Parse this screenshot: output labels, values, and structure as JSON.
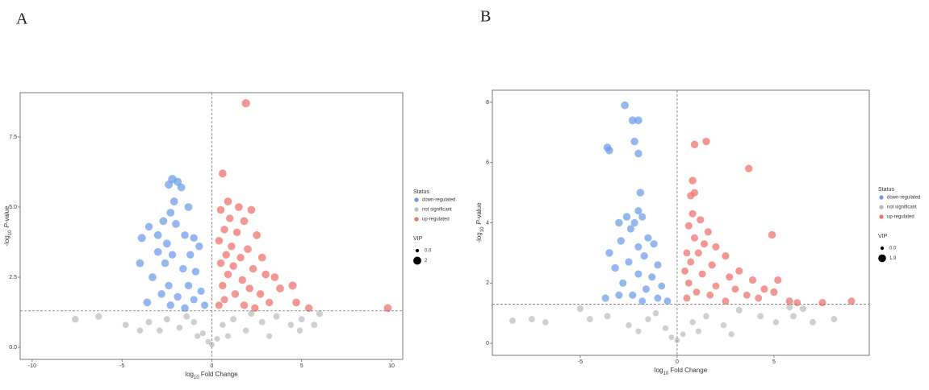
{
  "chart_data": [
    {
      "type": "scatter",
      "label": "A",
      "x_label": [
        "log",
        "10",
        " Fold Change"
      ],
      "y_label": [
        "-log",
        "10",
        "P",
        "-value"
      ],
      "xlim": [
        -10.67,
        10.63
      ],
      "ylim": [
        -0.43,
        9.08
      ],
      "xticks": [
        -10,
        -5,
        0,
        5,
        10
      ],
      "yticks": [
        {
          "value": 0,
          "label": "0.0"
        },
        2.5,
        {
          "value": 5,
          "label": "5.0"
        },
        7.5
      ],
      "thresholds": {
        "x": 0,
        "y": 1.3
      },
      "legend_title": "Status",
      "series": [
        {
          "name": "down-regulated",
          "color": "#6a9be8",
          "x": [
            -2.2,
            -1.9,
            -1.7,
            -2.4,
            -2.1,
            -2.3,
            -1.3,
            -2.7,
            -2.0,
            -3.5,
            -3.9,
            -3.0,
            -1.5,
            -2.5,
            -1.0,
            -0.7,
            -3.0,
            -2.2,
            -1.2,
            -4.0,
            -2.6,
            -1.6,
            -0.9,
            -3.3,
            -2.4,
            -1.3,
            -0.6,
            -2.8,
            -1.9,
            -1.0,
            -3.6,
            -2.3,
            -0.4,
            -1.5
          ],
          "values": [
            6.0,
            5.9,
            5.7,
            5.8,
            5.2,
            4.8,
            5.0,
            4.5,
            4.4,
            4.3,
            3.9,
            4.0,
            4.0,
            3.7,
            3.9,
            3.6,
            3.4,
            3.3,
            3.3,
            3.0,
            3.0,
            2.8,
            2.7,
            2.5,
            2.2,
            2.2,
            2.0,
            1.9,
            1.8,
            1.7,
            1.6,
            1.5,
            1.5,
            1.4
          ],
          "sizes": [
            1.8,
            1.7,
            1.6,
            1.7,
            1.6,
            1.6,
            1.6,
            1.6,
            1.6,
            1.5,
            1.7,
            1.6,
            1.5,
            1.6,
            1.5,
            1.5,
            1.6,
            1.5,
            1.5,
            1.6,
            1.5,
            1.5,
            1.5,
            1.6,
            1.5,
            1.5,
            1.4,
            1.5,
            1.5,
            1.4,
            1.6,
            1.5,
            1.4,
            1.5
          ]
        },
        {
          "name": "not significant",
          "color": "#bdbdbd",
          "x": [
            -7.6,
            -6.3,
            -4.8,
            -3.5,
            -2.5,
            -1.8,
            -1.0,
            -0.5,
            0,
            0.3,
            0.6,
            1.2,
            1.9,
            2.8,
            3.6,
            4.4,
            5.0,
            5.7,
            6.0,
            -0.2,
            -0.8,
            0.9,
            -1.4,
            2.2,
            -2.9,
            3.2,
            -4.0,
            4.9
          ],
          "values": [
            1.0,
            1.1,
            0.8,
            0.9,
            1.0,
            0.7,
            0.9,
            0.5,
            0.1,
            0.3,
            0.8,
            1.0,
            0.6,
            0.9,
            1.1,
            0.8,
            1.0,
            0.8,
            1.2,
            0.2,
            0.4,
            0.4,
            1.1,
            1.2,
            0.6,
            0.4,
            0.6,
            0.6
          ],
          "sizes": [
            1.2,
            1.1,
            1.0,
            1.0,
            1.0,
            0.9,
            0.9,
            0.8,
            0.7,
            0.7,
            0.9,
            1.0,
            0.9,
            1.0,
            1.0,
            0.9,
            1.0,
            1.0,
            1.1,
            0.7,
            0.8,
            0.8,
            1.0,
            1.0,
            0.9,
            0.8,
            0.9,
            0.9
          ]
        },
        {
          "name": "up-regulated",
          "color": "#ef6f6a",
          "x": [
            1.9,
            0.6,
            0.9,
            1.5,
            0.5,
            2.2,
            1.0,
            1.8,
            0.7,
            1.4,
            2.5,
            0.4,
            1.1,
            2.0,
            0.8,
            1.6,
            2.8,
            0.5,
            1.2,
            2.3,
            0.9,
            3.0,
            1.7,
            3.5,
            4.5,
            0.6,
            2.1,
            3.8,
            1.3,
            2.7,
            0.7,
            4.7,
            3.2,
            1.8,
            5.4,
            9.8,
            2.4,
            0.4
          ],
          "values": [
            8.7,
            6.2,
            5.2,
            5.0,
            4.9,
            4.9,
            4.6,
            4.5,
            4.2,
            4.1,
            4.0,
            3.8,
            3.6,
            3.5,
            3.3,
            3.2,
            3.2,
            3.0,
            2.9,
            2.8,
            2.6,
            2.6,
            2.4,
            2.5,
            2.2,
            2.2,
            2.1,
            2.1,
            1.9,
            1.9,
            1.7,
            1.6,
            1.6,
            1.5,
            1.4,
            1.4,
            1.4,
            1.5
          ],
          "sizes": [
            1.8,
            1.6,
            1.6,
            1.6,
            1.5,
            1.6,
            1.5,
            1.6,
            1.5,
            1.5,
            1.6,
            1.5,
            1.5,
            1.6,
            1.5,
            1.5,
            1.6,
            1.5,
            1.5,
            1.5,
            1.5,
            1.6,
            1.5,
            1.6,
            1.7,
            1.5,
            1.5,
            1.6,
            1.5,
            1.5,
            1.4,
            1.6,
            1.5,
            1.5,
            1.5,
            1.6,
            1.5,
            1.4
          ]
        }
      ],
      "size_legend": {
        "title": "VIP",
        "values": [
          {
            "value": 0,
            "label": "0.0"
          },
          2
        ]
      }
    },
    {
      "type": "scatter",
      "label": "B",
      "x_label": [
        "log",
        "10",
        " Fold Change"
      ],
      "y_label": [
        "-log",
        "10",
        "P",
        "-value"
      ],
      "xlim": [
        -9.54,
        9.92
      ],
      "ylim": [
        -0.4,
        8.4
      ],
      "xticks": [
        -5,
        0,
        5
      ],
      "yticks": [
        0,
        2,
        4,
        6,
        8
      ],
      "thresholds": {
        "x": 0,
        "y": 1.3
      },
      "legend_title": "Status",
      "series": [
        {
          "name": "down-regulated",
          "color": "#6a9be8",
          "x": [
            -2.7,
            -2.3,
            -2.0,
            -2.2,
            -3.6,
            -3.5,
            -2.0,
            -1.9,
            -2.0,
            -2.6,
            -1.8,
            -2.2,
            -3.0,
            -2.4,
            -1.5,
            -2.9,
            -1.2,
            -2.0,
            -3.5,
            -1.7,
            -2.5,
            -1.0,
            -3.2,
            -2.0,
            -1.3,
            -2.8,
            -0.8,
            -1.6,
            -3.0,
            -2.3,
            -1.0,
            -3.7,
            -0.5,
            -1.8
          ],
          "values": [
            7.9,
            7.4,
            7.4,
            6.7,
            6.5,
            6.4,
            6.3,
            5.0,
            4.4,
            4.2,
            4.2,
            4.0,
            4.0,
            3.8,
            3.5,
            3.4,
            3.3,
            3.2,
            3.0,
            2.9,
            2.7,
            2.6,
            2.5,
            2.3,
            2.2,
            2.0,
            1.9,
            1.8,
            1.6,
            1.6,
            1.5,
            1.5,
            1.4,
            1.4
          ],
          "sizes": [
            1.6,
            1.6,
            1.6,
            1.5,
            1.6,
            1.5,
            1.5,
            1.5,
            1.4,
            1.5,
            1.4,
            1.4,
            1.5,
            1.4,
            1.4,
            1.5,
            1.4,
            1.4,
            1.5,
            1.4,
            1.4,
            1.4,
            1.5,
            1.4,
            1.4,
            1.4,
            1.3,
            1.4,
            1.4,
            1.4,
            1.3,
            1.4,
            1.3,
            1.3
          ]
        },
        {
          "name": "not significant",
          "color": "#bdbdbd",
          "x": [
            -8.5,
            -7.5,
            -6.8,
            -5.0,
            -4.5,
            -3.6,
            -2.5,
            -1.5,
            -0.6,
            0,
            0.3,
            0.8,
            1.5,
            2.4,
            3.2,
            4.3,
            5.1,
            5.8,
            6.5,
            7.0,
            8.1,
            -0.3,
            1.1,
            -1.1,
            2.8,
            -2.0,
            6.0
          ],
          "values": [
            0.75,
            0.8,
            0.7,
            1.15,
            0.8,
            0.9,
            0.6,
            0.8,
            0.5,
            0.1,
            0.3,
            0.7,
            0.9,
            0.6,
            1.1,
            0.9,
            0.7,
            1.2,
            1.15,
            0.7,
            0.8,
            0.2,
            0.4,
            1.0,
            0.3,
            0.4,
            0.9
          ],
          "sizes": [
            1.0,
            1.0,
            0.9,
            1.1,
            1.0,
            1.0,
            0.9,
            0.9,
            0.8,
            0.7,
            0.7,
            0.9,
            0.9,
            0.9,
            1.0,
            1.0,
            0.9,
            1.1,
            1.1,
            1.0,
            1.0,
            0.7,
            0.8,
            0.9,
            0.8,
            0.8,
            1.0
          ]
        },
        {
          "name": "up-regulated",
          "color": "#ef6f6a",
          "x": [
            1.5,
            0.9,
            3.7,
            0.8,
            0.9,
            0.7,
            0.8,
            1.2,
            0.6,
            1.6,
            4.9,
            0.9,
            1.4,
            2.0,
            0.5,
            1.1,
            2.5,
            0.7,
            1.8,
            3.2,
            0.4,
            1.3,
            2.7,
            3.9,
            5.2,
            0.6,
            2.0,
            4.5,
            3.0,
            1.0,
            5.0,
            1.7,
            3.6,
            0.5,
            4.2,
            5.8,
            7.5,
            9.0,
            2.5,
            6.2
          ],
          "values": [
            6.7,
            6.6,
            5.8,
            5.4,
            5.0,
            4.9,
            4.3,
            4.1,
            3.9,
            3.7,
            3.6,
            3.5,
            3.3,
            3.2,
            3.0,
            3.0,
            2.9,
            2.7,
            2.6,
            2.4,
            2.4,
            2.3,
            2.2,
            2.1,
            2.1,
            2.0,
            1.9,
            1.8,
            1.8,
            1.7,
            1.7,
            1.6,
            1.6,
            1.5,
            1.5,
            1.4,
            1.35,
            1.4,
            1.4,
            1.35
          ],
          "sizes": [
            1.5,
            1.5,
            1.5,
            1.5,
            1.4,
            1.4,
            1.4,
            1.4,
            1.4,
            1.4,
            1.5,
            1.4,
            1.4,
            1.4,
            1.3,
            1.4,
            1.4,
            1.3,
            1.4,
            1.4,
            1.3,
            1.3,
            1.4,
            1.4,
            1.4,
            1.3,
            1.3,
            1.4,
            1.3,
            1.3,
            1.4,
            1.3,
            1.3,
            1.3,
            1.3,
            1.4,
            1.4,
            1.4,
            1.3,
            1.3
          ]
        }
      ],
      "size_legend": {
        "title": "VIP",
        "values": [
          {
            "value": 0,
            "label": "0.0"
          },
          1.9
        ]
      }
    }
  ]
}
